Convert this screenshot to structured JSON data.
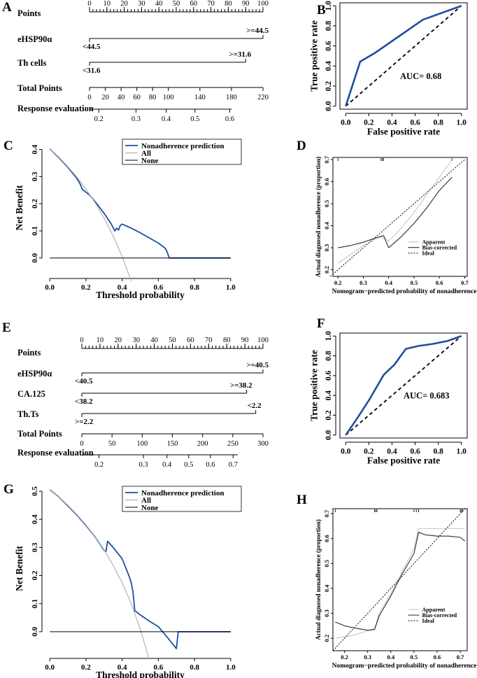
{
  "colors": {
    "curve": "#1f4e9e",
    "ink": "#000000",
    "light": "#b3b3b3",
    "mid": "#777777"
  },
  "chart_data": [
    {
      "panel": "A",
      "type": "nomogram",
      "rows": [
        {
          "label": "Points",
          "kind": "points",
          "ticks": [
            "0",
            "10",
            "20",
            "30",
            "40",
            "50",
            "60",
            "70",
            "80",
            "90",
            "100"
          ],
          "ticks_at": [
            0,
            10,
            20,
            30,
            40,
            50,
            60,
            70,
            80,
            90,
            100
          ],
          "minor_step": 2,
          "max": 100
        },
        {
          "label": "eHSP90α",
          "kind": "var",
          "low_label": "<44.5",
          "high_label": ">=44.5",
          "low_points": 0,
          "high_points": 100
        },
        {
          "label": "Th cells",
          "kind": "var",
          "low_label": "<31.6",
          "high_label": ">=31.6",
          "low_points": 0,
          "high_points": 90
        },
        {
          "label": "Total Points",
          "kind": "total",
          "ticks": [
            "0",
            "20",
            "40",
            "60",
            "80",
            "100",
            "140",
            "180",
            "220"
          ],
          "ticks_at": [
            0,
            20,
            40,
            60,
            80,
            100,
            140,
            180,
            220
          ],
          "max": 220
        },
        {
          "label": "Response evaluation",
          "kind": "response",
          "ticks": [
            "0.2",
            "0.3",
            "0.4",
            "0.5",
            "0.6"
          ],
          "ticks_at": [
            5.3,
            26.8,
            44.2,
            60.8,
            80.8
          ],
          "line_range": [
            0,
            82
          ]
        }
      ]
    },
    {
      "panel": "B",
      "type": "roc",
      "xlabel": "False positive rate",
      "ylabel": "True positive rate",
      "xticks": [
        "0.0",
        "0.2",
        "0.4",
        "0.6",
        "0.8",
        "1.0"
      ],
      "yticks": [
        "0.0",
        "0.2",
        "0.4",
        "0.6",
        "0.8",
        "1.0"
      ],
      "xlim": [
        -0.05,
        1.05
      ],
      "ylim": [
        -0.03,
        1.03
      ],
      "x": [
        0,
        0.125,
        0.25,
        0.667,
        1.0
      ],
      "y": [
        0,
        0.444,
        0.528,
        0.861,
        1.0
      ],
      "auc_text": "AUC= 0.68",
      "auc_at": [
        0.47,
        0.27
      ]
    },
    {
      "panel": "C",
      "type": "line",
      "xlabel": "Threshold probability",
      "ylabel": "Net Benefit",
      "xticks": [
        "0.0",
        "0.2",
        "0.4",
        "0.6",
        "0.8",
        "1.0"
      ],
      "yticks": [
        "0.0",
        "0.1",
        "0.2",
        "0.3",
        "0.4"
      ],
      "xlim": [
        -0.02,
        1.02
      ],
      "ylim": [
        -0.06,
        0.43
      ],
      "legend": [
        "Nonadherence prediction",
        "All",
        "None"
      ],
      "series": [
        {
          "name": "Nonadherence prediction",
          "x": [
            0,
            0.05,
            0.1,
            0.15,
            0.17,
            0.18,
            0.22,
            0.26,
            0.3,
            0.34,
            0.36,
            0.37,
            0.38,
            0.39,
            0.4,
            0.45,
            0.5,
            0.55,
            0.6,
            0.64,
            0.65,
            0.66,
            1.0
          ],
          "y": [
            0.403,
            0.37,
            0.334,
            0.293,
            0.27,
            0.253,
            0.232,
            0.2,
            0.165,
            0.125,
            0.1,
            0.11,
            0.103,
            0.12,
            0.125,
            0.11,
            0.093,
            0.074,
            0.055,
            0.035,
            0.02,
            0,
            0
          ]
        },
        {
          "name": "All",
          "x": [
            0,
            0.05,
            0.1,
            0.15,
            0.2,
            0.25,
            0.3,
            0.35,
            0.4,
            0.45
          ],
          "y": [
            0.403,
            0.372,
            0.337,
            0.298,
            0.254,
            0.204,
            0.147,
            0.082,
            0.005,
            -0.085
          ]
        },
        {
          "name": "None",
          "x": [
            0,
            1.0
          ],
          "y": [
            0,
            0
          ]
        }
      ]
    },
    {
      "panel": "D",
      "type": "calibration",
      "xlabel": "Nomogram−predicted probability of nonadherence",
      "ylabel": "Actual diagnosed nonadherence (proportion)",
      "xticks": [
        "0.2",
        "0.3",
        "0.4",
        "0.5",
        "0.6",
        "0.7"
      ],
      "yticks": [
        "0.2",
        "0.3",
        "0.4",
        "0.5",
        "0.6",
        "0.7"
      ],
      "xlim": [
        0.18,
        0.71
      ],
      "ylim": [
        0.17,
        0.71
      ],
      "rug_x": [
        0.2,
        0.37,
        0.375,
        0.38,
        0.65
      ],
      "legend": [
        "Apparent",
        "Bias-corrected",
        "Ideal"
      ],
      "series": [
        {
          "name": "Apparent",
          "x": [
            0.2,
            0.25,
            0.3,
            0.35,
            0.37,
            0.4,
            0.45,
            0.5,
            0.55,
            0.6,
            0.65
          ],
          "y": [
            0.23,
            0.27,
            0.31,
            0.34,
            0.35,
            0.33,
            0.39,
            0.46,
            0.54,
            0.62,
            0.7
          ]
        },
        {
          "name": "Bias-corrected",
          "x": [
            0.2,
            0.25,
            0.3,
            0.35,
            0.38,
            0.4,
            0.45,
            0.5,
            0.55,
            0.6,
            0.65
          ],
          "y": [
            0.3,
            0.31,
            0.325,
            0.345,
            0.355,
            0.3,
            0.35,
            0.41,
            0.48,
            0.56,
            0.62
          ]
        },
        {
          "name": "Ideal",
          "x": [
            0.17,
            0.7
          ],
          "y": [
            0.17,
            0.7
          ]
        }
      ]
    },
    {
      "panel": "E",
      "type": "nomogram",
      "rows": [
        {
          "label": "Points",
          "kind": "points",
          "ticks": [
            "0",
            "10",
            "20",
            "30",
            "40",
            "50",
            "60",
            "70",
            "80",
            "90",
            "100"
          ],
          "ticks_at": [
            0,
            10,
            20,
            30,
            40,
            50,
            60,
            70,
            80,
            90,
            100
          ],
          "minor_step": 2,
          "max": 100
        },
        {
          "label": "eHSP90α",
          "kind": "var",
          "low_label": "<40.5",
          "high_label": ">=40.5",
          "low_points": 0,
          "high_points": 100
        },
        {
          "label": "CA.125",
          "kind": "var",
          "low_label": "<38.2",
          "high_label": ">=38.2",
          "low_points": 0,
          "high_points": 91
        },
        {
          "label": "Th.Ts",
          "kind": "var",
          "low_label": ">=2.2",
          "high_label": "<2.2",
          "low_points": 0,
          "high_points": 96
        },
        {
          "label": "Total Points",
          "kind": "total",
          "ticks": [
            "0",
            "50",
            "100",
            "150",
            "200",
            "250",
            "300"
          ],
          "ticks_at": [
            0,
            50,
            100,
            150,
            200,
            250,
            300
          ],
          "max": 300
        },
        {
          "label": "Response evaluation",
          "kind": "response",
          "ticks": [
            "0.2",
            "0.3",
            "0.4",
            "0.5",
            "0.6",
            "0.7"
          ],
          "ticks_at": [
            9.5,
            34.0,
            47.0,
            59.0,
            71.0,
            83.5
          ],
          "line_range": [
            0,
            86
          ]
        }
      ]
    },
    {
      "panel": "F",
      "type": "roc",
      "xlabel": "False positive rate",
      "ylabel": "True positive rate",
      "xticks": [
        "0.0",
        "0.2",
        "0.4",
        "0.6",
        "0.8",
        "1.0"
      ],
      "yticks": [
        "0.0",
        "0.2",
        "0.4",
        "0.6",
        "0.8",
        "1.0"
      ],
      "xlim": [
        -0.05,
        1.05
      ],
      "ylim": [
        -0.03,
        1.03
      ],
      "x": [
        0,
        0.1,
        0.2,
        0.33,
        0.42,
        0.52,
        0.63,
        0.75,
        0.88,
        0.95,
        1.0
      ],
      "y": [
        0,
        0.17,
        0.35,
        0.61,
        0.71,
        0.87,
        0.9,
        0.92,
        0.95,
        0.98,
        1.0
      ],
      "auc_text": "AUC= 0.683",
      "auc_at": [
        0.5,
        0.37
      ]
    },
    {
      "panel": "G",
      "type": "line",
      "xlabel": "Threshold probability",
      "ylabel": "Net Benefit",
      "xticks": [
        "0.0",
        "0.2",
        "0.4",
        "0.6",
        "0.8",
        "1.0"
      ],
      "yticks": [
        "0.0",
        "0.1",
        "0.2",
        "0.3",
        "0.4",
        "0.5"
      ],
      "xlim": [
        -0.02,
        1.02
      ],
      "ylim": [
        -0.08,
        0.53
      ],
      "legend": [
        "Nonadherence prediction",
        "All",
        "None"
      ],
      "series": [
        {
          "name": "Nonadherence prediction",
          "x": [
            0,
            0.05,
            0.1,
            0.15,
            0.2,
            0.25,
            0.3,
            0.31,
            0.32,
            0.35,
            0.4,
            0.44,
            0.45,
            0.46,
            0.47,
            0.5,
            0.55,
            0.6,
            0.65,
            0.7,
            0.71,
            1.0
          ],
          "y": [
            0.505,
            0.48,
            0.448,
            0.415,
            0.378,
            0.338,
            0.29,
            0.285,
            0.322,
            0.3,
            0.26,
            0.195,
            0.175,
            0.14,
            0.075,
            0.06,
            0.038,
            0.018,
            -0.02,
            -0.06,
            0,
            0
          ]
        },
        {
          "name": "All",
          "x": [
            0,
            0.05,
            0.1,
            0.15,
            0.2,
            0.25,
            0.3,
            0.35,
            0.4,
            0.45,
            0.5,
            0.55
          ],
          "y": [
            0.505,
            0.48,
            0.45,
            0.417,
            0.38,
            0.338,
            0.292,
            0.237,
            0.175,
            0.1,
            0.01,
            -0.1
          ]
        },
        {
          "name": "None",
          "x": [
            0,
            1.0
          ],
          "y": [
            0,
            0
          ]
        }
      ]
    },
    {
      "panel": "H",
      "type": "calibration",
      "xlabel": "Nomogram−predicted probability of nonadherence",
      "ylabel": "Actual diagnosed nonadherence (proportion)",
      "xticks": [
        "0.2",
        "0.3",
        "0.4",
        "0.5",
        "0.6",
        "0.7"
      ],
      "yticks": [
        "0.2",
        "0.3",
        "0.4",
        "0.5",
        "0.6",
        "0.7"
      ],
      "xlim": [
        0.15,
        0.73
      ],
      "ylim": [
        0.15,
        0.72
      ],
      "rug_x": [
        0.16,
        0.33,
        0.335,
        0.34,
        0.5,
        0.51,
        0.52,
        0.7,
        0.705,
        0.71
      ],
      "legend": [
        "Apparent",
        "Bias-corrected",
        "Ideal"
      ],
      "series": [
        {
          "name": "Apparent",
          "x": [
            0.16,
            0.2,
            0.25,
            0.3,
            0.33,
            0.35,
            0.4,
            0.45,
            0.5,
            0.52,
            0.55,
            0.6,
            0.65,
            0.7,
            0.72
          ],
          "y": [
            0.2,
            0.205,
            0.215,
            0.23,
            0.24,
            0.3,
            0.38,
            0.47,
            0.56,
            0.64,
            0.64,
            0.64,
            0.64,
            0.64,
            0.64
          ]
        },
        {
          "name": "Bias-corrected",
          "x": [
            0.16,
            0.2,
            0.25,
            0.3,
            0.33,
            0.35,
            0.4,
            0.45,
            0.5,
            0.52,
            0.55,
            0.6,
            0.65,
            0.7,
            0.72
          ],
          "y": [
            0.265,
            0.25,
            0.24,
            0.232,
            0.235,
            0.29,
            0.37,
            0.46,
            0.54,
            0.625,
            0.615,
            0.61,
            0.61,
            0.605,
            0.59
          ]
        },
        {
          "name": "Ideal",
          "x": [
            0.15,
            0.72
          ],
          "y": [
            0.15,
            0.72
          ]
        }
      ]
    }
  ]
}
